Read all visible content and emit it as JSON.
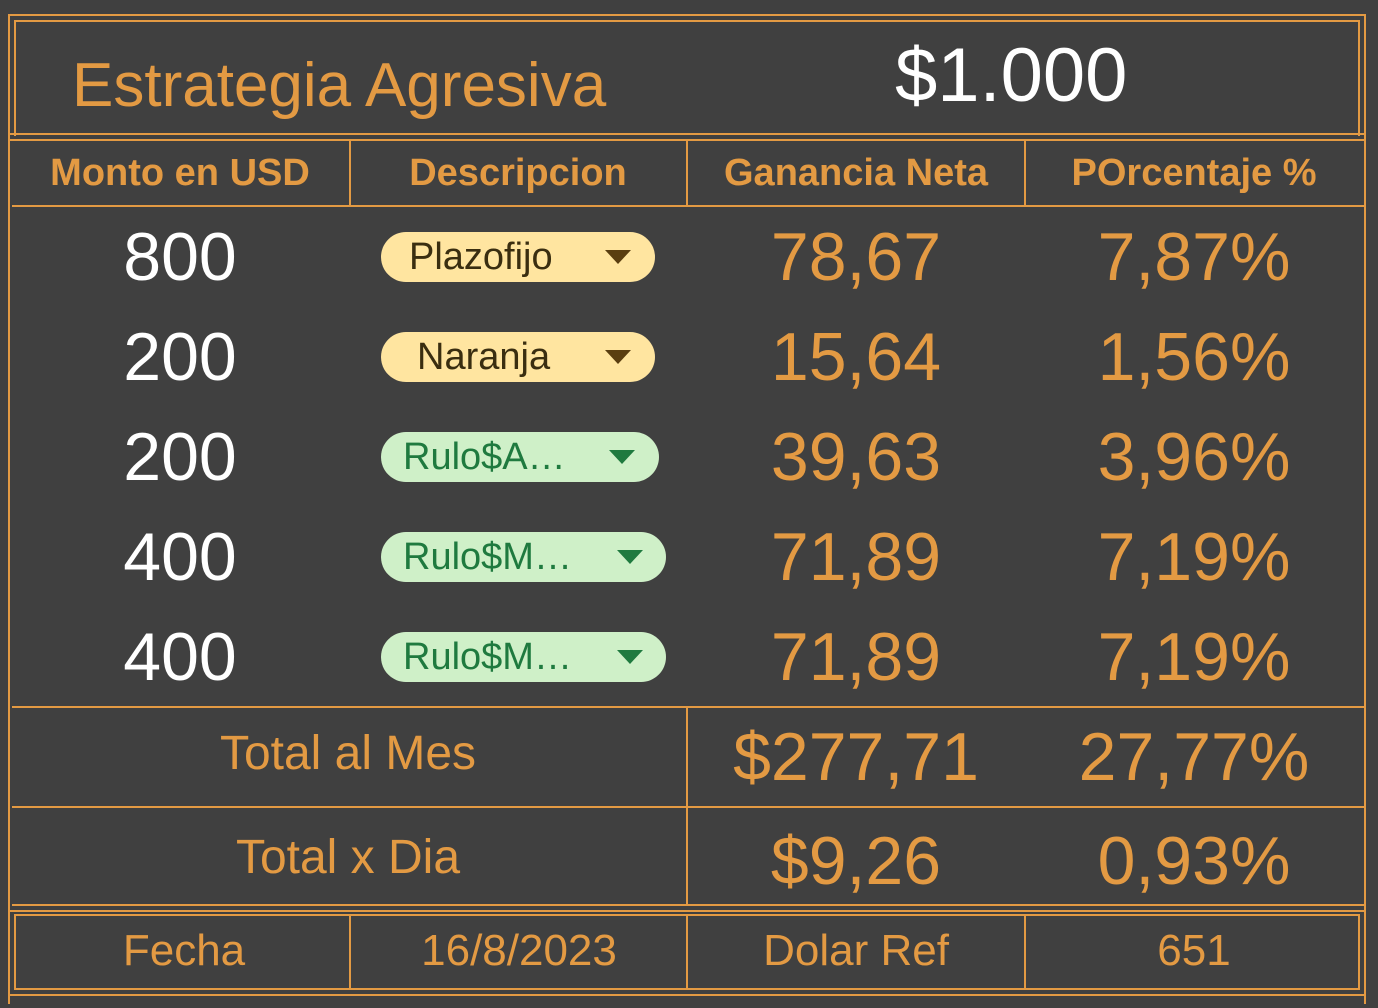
{
  "header": {
    "title": "Estrategia Agresiva",
    "amount": "$1.000"
  },
  "columns": {
    "monto": "Monto en USD",
    "descripcion": "Descripcion",
    "ganancia": "Ganancia Neta",
    "porcentaje": "POrcentaje %"
  },
  "rows": [
    {
      "monto": "800",
      "descripcion": "Plazofijo",
      "ganancia": "78,67",
      "porcentaje": "7,87%",
      "style": "yellow"
    },
    {
      "monto": "200",
      "descripcion": "Naranja",
      "ganancia": "15,64",
      "porcentaje": "1,56%",
      "style": "yellow"
    },
    {
      "monto": "200",
      "descripcion": "Rulo$A…",
      "ganancia": "39,63",
      "porcentaje": "3,96%",
      "style": "green"
    },
    {
      "monto": "400",
      "descripcion": "Rulo$M…",
      "ganancia": "71,89",
      "porcentaje": "7,19%",
      "style": "green"
    },
    {
      "monto": "400",
      "descripcion": "Rulo$M…",
      "ganancia": "71,89",
      "porcentaje": "7,19%",
      "style": "green"
    }
  ],
  "totals": {
    "mes_label": "Total al Mes",
    "mes_ganancia": "$277,71",
    "mes_porcentaje": "27,77%",
    "dia_label": "Total x Dia",
    "dia_ganancia": "$9,26",
    "dia_porcentaje": "0,93%"
  },
  "footer": {
    "fecha_label": "Fecha",
    "fecha_value": "16/8/2023",
    "dolar_label": "Dolar Ref",
    "dolar_value": "651"
  },
  "colors": {
    "background": "#404040",
    "accent": "#E39A43",
    "chip_yellow": "#FFE5A0",
    "chip_green": "#CFF0C8"
  }
}
